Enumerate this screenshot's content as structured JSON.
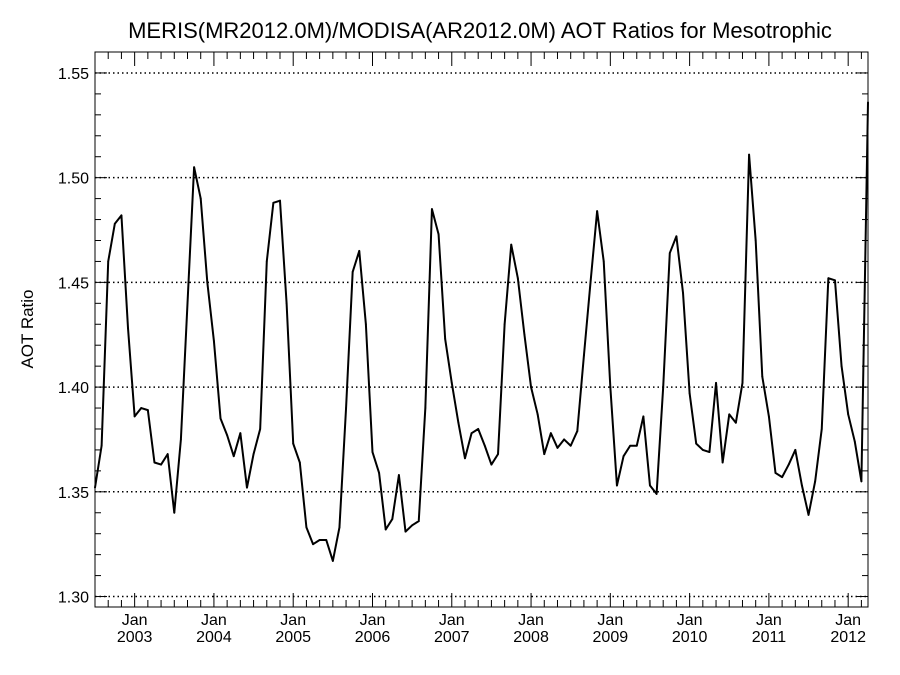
{
  "chart_data": {
    "type": "line",
    "title": "MERIS(MR2012.0M)/MODISA(AR2012.0M)  AOT Ratios for Mesotrophic",
    "xlabel": "",
    "ylabel": "AOT Ratio",
    "ylim": [
      1.295,
      1.56
    ],
    "yticks": [
      1.3,
      1.35,
      1.4,
      1.45,
      1.5,
      1.55
    ],
    "ytick_labels": [
      "1.30",
      "1.35",
      "1.40",
      "1.45",
      "1.50",
      "1.55"
    ],
    "xlim": [
      "2002-07",
      "2012-04"
    ],
    "xticks": [
      {
        "date": "2003-01",
        "month": "Jan",
        "year": "2003"
      },
      {
        "date": "2004-01",
        "month": "Jan",
        "year": "2004"
      },
      {
        "date": "2005-01",
        "month": "Jan",
        "year": "2005"
      },
      {
        "date": "2006-01",
        "month": "Jan",
        "year": "2006"
      },
      {
        "date": "2007-01",
        "month": "Jan",
        "year": "2007"
      },
      {
        "date": "2008-01",
        "month": "Jan",
        "year": "2008"
      },
      {
        "date": "2009-01",
        "month": "Jan",
        "year": "2009"
      },
      {
        "date": "2010-01",
        "month": "Jan",
        "year": "2010"
      },
      {
        "date": "2011-01",
        "month": "Jan",
        "year": "2011"
      },
      {
        "date": "2012-01",
        "month": "Jan",
        "year": "2012"
      }
    ],
    "grid": "horizontal-dotted",
    "line_color": "#000000",
    "x": [
      "2002-07",
      "2002-08",
      "2002-09",
      "2002-10",
      "2002-11",
      "2002-12",
      "2003-01",
      "2003-02",
      "2003-03",
      "2003-04",
      "2003-05",
      "2003-06",
      "2003-07",
      "2003-08",
      "2003-09",
      "2003-10",
      "2003-11",
      "2003-12",
      "2004-01",
      "2004-02",
      "2004-03",
      "2004-04",
      "2004-05",
      "2004-06",
      "2004-07",
      "2004-08",
      "2004-09",
      "2004-10",
      "2004-11",
      "2004-12",
      "2005-01",
      "2005-02",
      "2005-03",
      "2005-04",
      "2005-05",
      "2005-06",
      "2005-07",
      "2005-08",
      "2005-09",
      "2005-10",
      "2005-11",
      "2005-12",
      "2006-01",
      "2006-02",
      "2006-03",
      "2006-04",
      "2006-05",
      "2006-06",
      "2006-07",
      "2006-08",
      "2006-09",
      "2006-10",
      "2006-11",
      "2006-12",
      "2007-01",
      "2007-02",
      "2007-03",
      "2007-04",
      "2007-05",
      "2007-06",
      "2007-07",
      "2007-08",
      "2007-09",
      "2007-10",
      "2007-11",
      "2007-12",
      "2008-01",
      "2008-02",
      "2008-03",
      "2008-04",
      "2008-05",
      "2008-06",
      "2008-07",
      "2008-08",
      "2008-09",
      "2008-10",
      "2008-11",
      "2008-12",
      "2009-01",
      "2009-02",
      "2009-03",
      "2009-04",
      "2009-05",
      "2009-06",
      "2009-07",
      "2009-08",
      "2009-09",
      "2009-10",
      "2009-11",
      "2009-12",
      "2010-01",
      "2010-02",
      "2010-03",
      "2010-04",
      "2010-05",
      "2010-06",
      "2010-07",
      "2010-08",
      "2010-09",
      "2010-10",
      "2010-11",
      "2010-12",
      "2011-01",
      "2011-02",
      "2011-03",
      "2011-04",
      "2011-05",
      "2011-06",
      "2011-07",
      "2011-08",
      "2011-09",
      "2011-10",
      "2011-11",
      "2011-12",
      "2012-01",
      "2012-02",
      "2012-03",
      "2012-04"
    ],
    "values": [
      1.352,
      1.372,
      1.46,
      1.478,
      1.482,
      1.428,
      1.386,
      1.39,
      1.389,
      1.364,
      1.363,
      1.368,
      1.34,
      1.375,
      1.44,
      1.505,
      1.49,
      1.45,
      1.422,
      1.385,
      1.377,
      1.367,
      1.378,
      1.352,
      1.368,
      1.38,
      1.46,
      1.488,
      1.489,
      1.44,
      1.373,
      1.364,
      1.333,
      1.325,
      1.327,
      1.327,
      1.317,
      1.333,
      1.39,
      1.455,
      1.465,
      1.43,
      1.369,
      1.359,
      1.332,
      1.337,
      1.358,
      1.331,
      1.334,
      1.336,
      1.39,
      1.485,
      1.473,
      1.423,
      1.402,
      1.383,
      1.366,
      1.378,
      1.38,
      1.372,
      1.363,
      1.368,
      1.43,
      1.468,
      1.452,
      1.425,
      1.4,
      1.387,
      1.368,
      1.378,
      1.371,
      1.375,
      1.372,
      1.379,
      1.415,
      1.45,
      1.484,
      1.46,
      1.4,
      1.353,
      1.367,
      1.372,
      1.372,
      1.386,
      1.353,
      1.349,
      1.4,
      1.464,
      1.472,
      1.445,
      1.397,
      1.373,
      1.37,
      1.369,
      1.402,
      1.364,
      1.387,
      1.383,
      1.402,
      1.511,
      1.47,
      1.405,
      1.386,
      1.359,
      1.357,
      1.363,
      1.37,
      1.353,
      1.339,
      1.355,
      1.38,
      1.452,
      1.451,
      1.41,
      1.387,
      1.374,
      1.355,
      1.536
    ]
  }
}
